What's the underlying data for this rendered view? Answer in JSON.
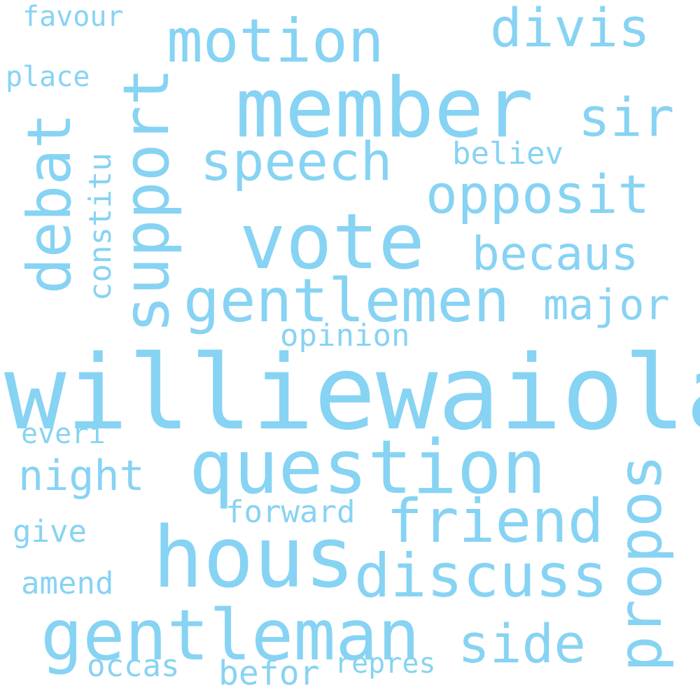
{
  "text_color": "#87d3f3",
  "background_color": "#ffffff",
  "words": {
    "williewaiola": "williewaiola",
    "member": "member",
    "question": "question",
    "hous": "hous",
    "gentleman": "gentleman",
    "vote": "vote",
    "gentlemen": "gentlemen",
    "support": "support",
    "motion": "motion",
    "debat": "debat",
    "friend": "friend",
    "discuss": "discuss",
    "propos": "propos",
    "opposit": "opposit",
    "speech": "speech",
    "divis": "divis",
    "side": "side",
    "sir": "sir",
    "becaus": "becaus",
    "major": "major",
    "night": "night",
    "constitu": "constitu",
    "believ": "believ",
    "opinion": "opinion",
    "forward": "forward",
    "amend": "amend",
    "occas": "occas",
    "befor": "befor",
    "repres": "repres",
    "give": "give",
    "everi": "everi",
    "place": "place",
    "favour": "favour"
  }
}
